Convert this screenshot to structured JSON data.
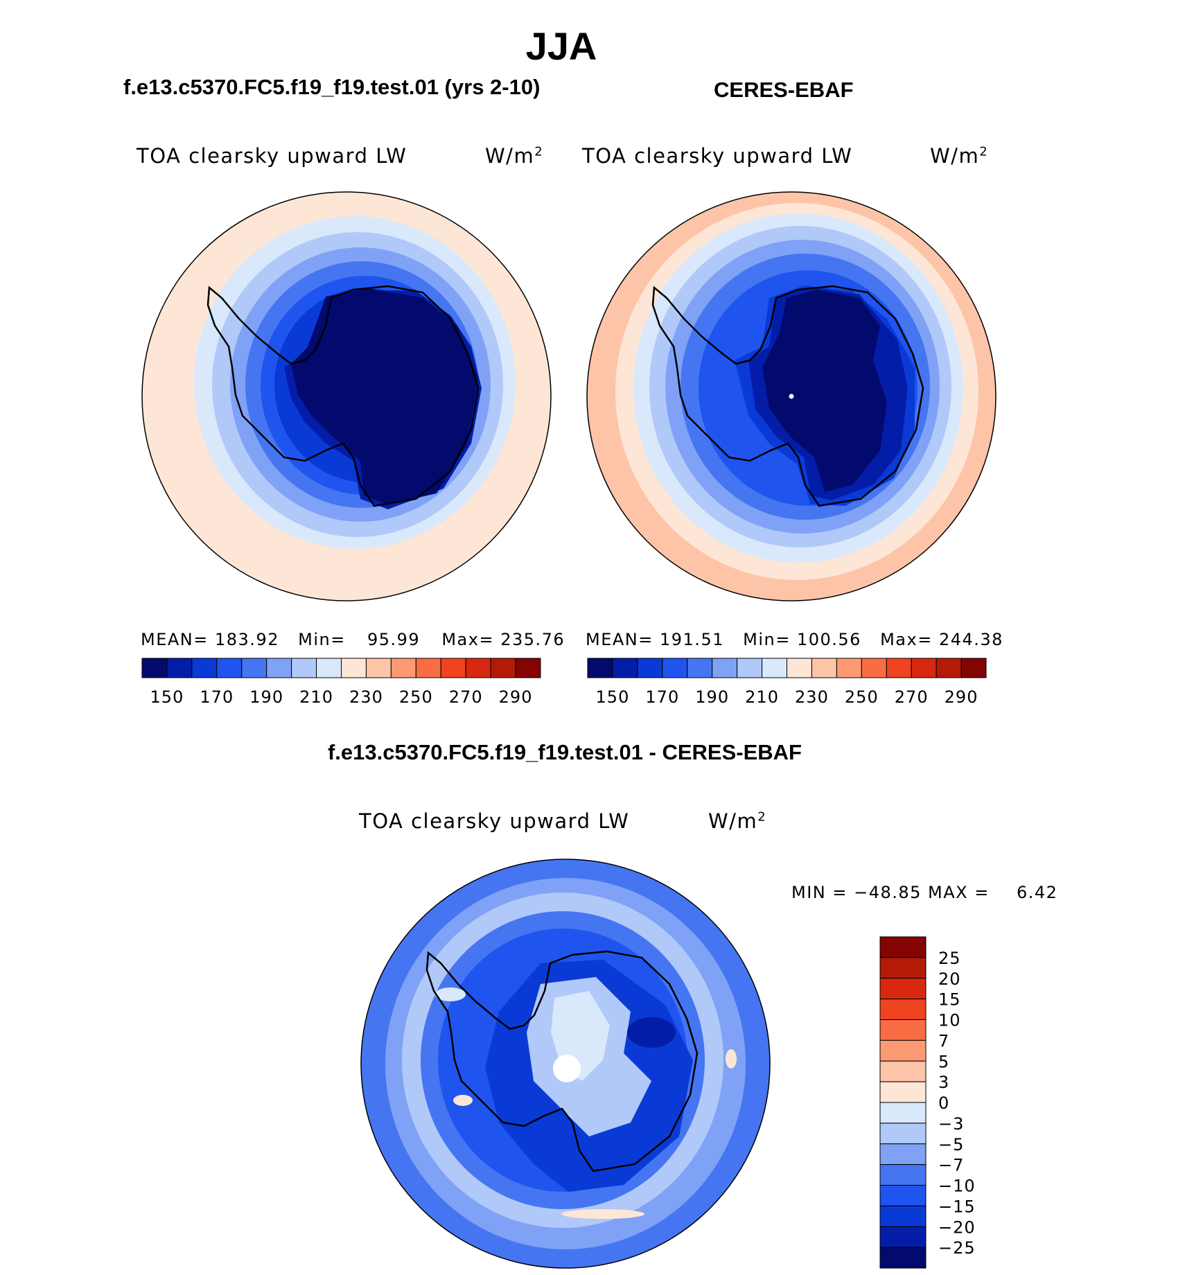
{
  "title": "JJA",
  "panels": [
    {
      "heading": "f.e13.c5370.FC5.f19_f19.test.01 (yrs 2-10)",
      "variable": "TOA clearsky upward LW",
      "units": "W/m",
      "units_sup": "2",
      "mean_label": "MEAN=",
      "mean": "183.92",
      "min_label": "Min=",
      "min": "95.99",
      "max_label": "Max=",
      "max": "235.76"
    },
    {
      "heading": "CERES-EBAF",
      "variable": "TOA clearsky upward LW",
      "units": "W/m",
      "units_sup": "2",
      "mean_label": "MEAN=",
      "mean": "191.51",
      "min_label": "Min=",
      "min": "100.56",
      "max_label": "Max=",
      "max": "244.38"
    }
  ],
  "difference": {
    "heading": "f.e13.c5370.FC5.f19_f19.test.01 - CERES-EBAF",
    "variable": "TOA clearsky upward LW",
    "units": "W/m",
    "units_sup": "2",
    "min_max_label": "MIN = −48.85 MAX =",
    "max": "6.42"
  },
  "colorbar_abs": {
    "ticks": [
      "150",
      "170",
      "190",
      "210",
      "230",
      "250",
      "270",
      "290"
    ],
    "colors": [
      "#020a6e",
      "#041da8",
      "#0a3ad6",
      "#1f55ee",
      "#4675f2",
      "#7fa2f6",
      "#b1c9f9",
      "#dae8fb",
      "#fde6d5",
      "#fdc4a8",
      "#fc9a74",
      "#f86d44",
      "#f04320",
      "#d92810",
      "#b31b07",
      "#840404"
    ]
  },
  "colorbar_diff": {
    "labels": [
      "25",
      "20",
      "15",
      "10",
      "7",
      "5",
      "3",
      "0",
      "−3",
      "−5",
      "−7",
      "−10",
      "−15",
      "−20",
      "−25"
    ],
    "colors": [
      "#840404",
      "#b31b07",
      "#d92810",
      "#f04320",
      "#f86d44",
      "#fc9a74",
      "#fdc4a8",
      "#fde6d5",
      "#dae8fb",
      "#b1c9f9",
      "#7fa2f6",
      "#4675f2",
      "#1f55ee",
      "#0a3ad6",
      "#041da8",
      "#020a6e"
    ]
  }
}
